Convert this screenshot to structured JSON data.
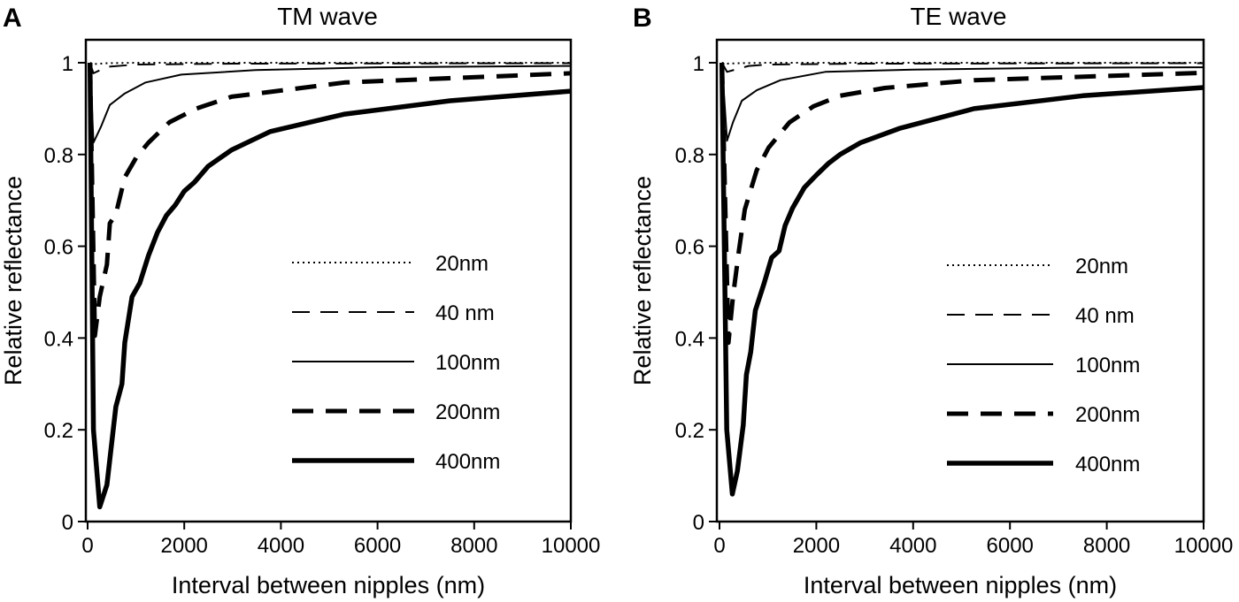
{
  "chart_data": [
    {
      "type": "line",
      "panel_label": "A",
      "title": "TM wave",
      "xlabel": "Interval between nipples (nm)",
      "ylabel": "Relative reflectance",
      "xlim": [
        0,
        10000
      ],
      "ylim": [
        0,
        1.05
      ],
      "xticks": [
        0,
        2000,
        4000,
        6000,
        8000,
        10000
      ],
      "yticks": [
        0,
        0.2,
        0.4,
        0.6,
        0.8,
        1
      ],
      "grid": false,
      "legend_placement": "center-right",
      "series": [
        {
          "name": "20nm",
          "style": "dotted",
          "x": [
            50,
            120,
            400,
            1000,
            3000,
            10000
          ],
          "y": [
            1,
            0.997,
            0.999,
            1,
            1,
            1
          ]
        },
        {
          "name": "40 nm",
          "style": "long-dash",
          "x": [
            50,
            120,
            400,
            1000,
            3000,
            10000
          ],
          "y": [
            1,
            0.977,
            0.991,
            0.996,
            0.998,
            0.999
          ]
        },
        {
          "name": "100nm",
          "style": "thin-solid",
          "x": [
            50,
            120,
            275,
            460,
            770,
            1200,
            1940,
            3475,
            6000,
            10000
          ],
          "y": [
            1,
            0.826,
            0.86,
            0.908,
            0.933,
            0.957,
            0.974,
            0.984,
            0.99,
            0.993
          ]
        },
        {
          "name": "200nm",
          "style": "thick-dash",
          "x": [
            50,
            150,
            250,
            400,
            460,
            585,
            770,
            1015,
            1260,
            1690,
            2245,
            2980,
            5320,
            10000
          ],
          "y": [
            1,
            0.405,
            0.49,
            0.56,
            0.65,
            0.67,
            0.75,
            0.795,
            0.826,
            0.87,
            0.9,
            0.926,
            0.957,
            0.977
          ]
        },
        {
          "name": "400nm",
          "style": "thick-solid",
          "x": [
            50,
            120,
            250,
            400,
            585,
            710,
            770,
            920,
            1080,
            1260,
            1445,
            1630,
            1815,
            2000,
            2215,
            2490,
            2980,
            3780,
            5320,
            7500,
            10000
          ],
          "y": [
            1,
            0.2,
            0.032,
            0.08,
            0.25,
            0.3,
            0.39,
            0.49,
            0.52,
            0.58,
            0.63,
            0.667,
            0.69,
            0.72,
            0.74,
            0.774,
            0.81,
            0.85,
            0.888,
            0.917,
            0.938
          ]
        }
      ]
    },
    {
      "type": "line",
      "panel_label": "B",
      "title": "TE wave",
      "xlabel": "Interval between nipples (nm)",
      "ylabel": "Relative reflectance",
      "xlim": [
        0,
        10000
      ],
      "ylim": [
        0,
        1.05
      ],
      "xticks": [
        0,
        2000,
        4000,
        6000,
        8000,
        10000
      ],
      "yticks": [
        0,
        0.2,
        0.4,
        0.6,
        0.8,
        1
      ],
      "grid": false,
      "legend_placement": "center-right",
      "series": [
        {
          "name": "20nm",
          "style": "dotted",
          "x": [
            50,
            155,
            400,
            1000,
            3000,
            10000
          ],
          "y": [
            1,
            0.998,
            0.999,
            1,
            1,
            1
          ]
        },
        {
          "name": "40 nm",
          "style": "long-dash",
          "x": [
            50,
            155,
            600,
            1000,
            3000,
            10000
          ],
          "y": [
            1,
            0.98,
            0.993,
            0.996,
            0.998,
            0.999
          ]
        },
        {
          "name": "100nm",
          "style": "thin-solid",
          "x": [
            50,
            155,
            277,
            460,
            770,
            1260,
            2185,
            4000,
            7000,
            10000
          ],
          "y": [
            1,
            0.83,
            0.87,
            0.917,
            0.94,
            0.962,
            0.98,
            0.985,
            0.989,
            0.99
          ]
        },
        {
          "name": "200nm",
          "style": "thick-dash",
          "x": [
            50,
            185,
            277,
            400,
            523,
            770,
            1015,
            1446,
            1940,
            2490,
            3415,
            5260,
            10000
          ],
          "y": [
            1,
            0.39,
            0.49,
            0.59,
            0.68,
            0.766,
            0.815,
            0.87,
            0.905,
            0.928,
            0.945,
            0.962,
            0.978
          ]
        },
        {
          "name": "400nm",
          "style": "thick-solid",
          "x": [
            50,
            150,
            265,
            370,
            490,
            555,
            646,
            740,
            923,
            1077,
            1230,
            1354,
            1508,
            1754,
            2000,
            2245,
            2490,
            2920,
            3720,
            5260,
            7500,
            10000
          ],
          "y": [
            1,
            0.2,
            0.06,
            0.11,
            0.21,
            0.32,
            0.37,
            0.46,
            0.52,
            0.575,
            0.59,
            0.645,
            0.683,
            0.728,
            0.755,
            0.78,
            0.8,
            0.826,
            0.857,
            0.9,
            0.928,
            0.946
          ]
        }
      ]
    }
  ]
}
